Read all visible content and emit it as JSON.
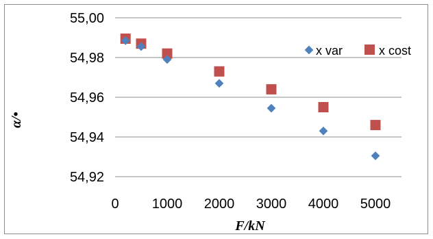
{
  "chart_data": {
    "type": "scatter",
    "xlabel": "F/kN",
    "ylabel": "α/•",
    "xlim": [
      0,
      5500
    ],
    "ylim": [
      54.92,
      55.0
    ],
    "xticks": [
      0,
      1000,
      2000,
      3000,
      4000,
      5000
    ],
    "xtick_labels": [
      "0",
      "1000",
      "2000",
      "3000",
      "4000",
      "5000"
    ],
    "yticks": [
      54.92,
      54.94,
      54.96,
      54.98,
      55.0
    ],
    "ytick_labels": [
      "54,92",
      "54,94",
      "54,96",
      "54,98",
      "55,00"
    ],
    "grid": "horizontal",
    "legend_position": "right",
    "series": [
      {
        "name": "x var",
        "marker": "diamond",
        "color": "#4f81bd",
        "x": [
          200,
          500,
          1000,
          2000,
          3000,
          4000,
          5000
        ],
        "y": [
          54.9885,
          54.9855,
          54.979,
          54.967,
          54.9545,
          54.943,
          54.9305
        ]
      },
      {
        "name": "x cost",
        "marker": "square",
        "color": "#c0504d",
        "x": [
          200,
          500,
          1000,
          2000,
          3000,
          4000,
          5000
        ],
        "y": [
          54.9895,
          54.987,
          54.982,
          54.973,
          54.964,
          54.955,
          54.946
        ]
      }
    ]
  }
}
